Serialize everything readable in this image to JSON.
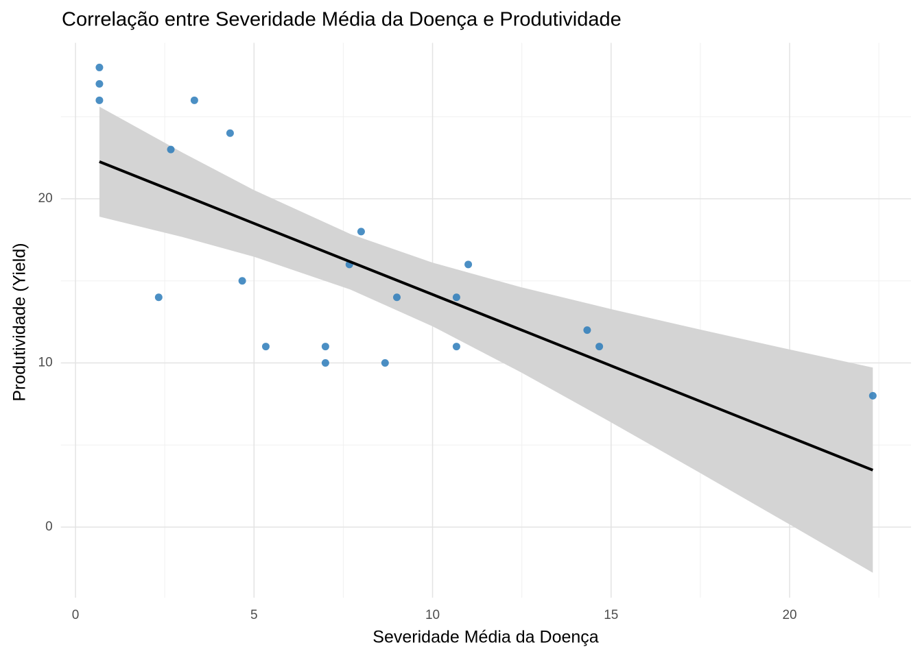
{
  "chart_data": {
    "type": "scatter",
    "title": "Correlação entre Severidade Média da Doença e Produtividade",
    "x_label": "Severidade Média da Doença",
    "y_label": "Produtividade (Yield)",
    "x": [
      0.67,
      0.67,
      0.67,
      3.33,
      4.33,
      2.67,
      2.33,
      4.67,
      5.33,
      7,
      7,
      7.67,
      8,
      8.67,
      9,
      10.67,
      10.67,
      11,
      14.33,
      14.67,
      22.33
    ],
    "y": [
      28,
      27,
      26,
      26,
      24,
      23,
      14,
      15,
      11,
      11,
      10,
      16,
      18,
      10,
      14,
      14,
      11,
      16,
      12,
      11,
      8
    ],
    "color": "#2b7bba",
    "fit": {
      "color": "#000000",
      "band_color": "#d4d4d4",
      "x": [
        0.67,
        3,
        5,
        7.7,
        10,
        12.5,
        15,
        17.5,
        20,
        22.33
      ],
      "y": [
        22.26,
        20.24,
        18.5,
        16.16,
        14.17,
        12.0,
        9.83,
        7.66,
        5.49,
        3.47
      ],
      "upper": [
        25.61,
        22.81,
        20.53,
        17.85,
        16.11,
        14.6,
        13.28,
        12.03,
        10.82,
        9.72
      ],
      "lower": [
        18.91,
        17.67,
        16.47,
        14.47,
        12.23,
        9.4,
        6.38,
        3.29,
        0.16,
        -2.78
      ]
    },
    "xlim": [
      -0.41,
      23.4
    ],
    "ylim": [
      -4.3,
      29.5
    ],
    "xticks": [
      0,
      5,
      10,
      15,
      20
    ],
    "yticks": [
      0,
      10,
      20
    ],
    "xminor": [
      2.5,
      7.5,
      12.5,
      17.5,
      22.5
    ],
    "yminor": [
      5,
      15,
      25
    ],
    "grid": true
  }
}
